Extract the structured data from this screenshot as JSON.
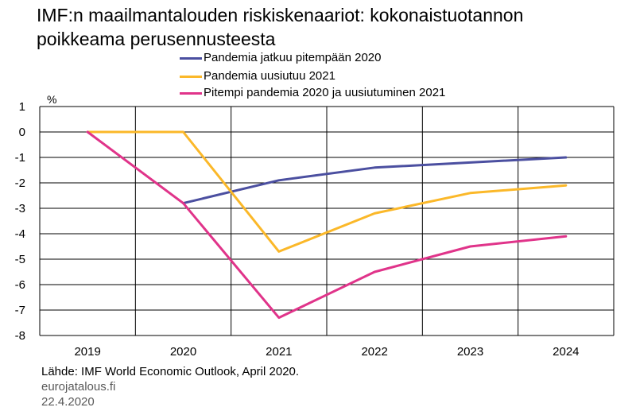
{
  "title_line1": "IMF:n maailmantalouden riskiskenaariot: kokonaistuotannon",
  "title_line2": "poikkeama perusennusteesta",
  "chart_data": {
    "type": "line",
    "unit": "%",
    "categories": [
      "2019",
      "2020",
      "2021",
      "2022",
      "2023",
      "2024"
    ],
    "ylim": [
      -8,
      1
    ],
    "yticks": [
      "1",
      "0",
      "-1",
      "-2",
      "-3",
      "-4",
      "-5",
      "-6",
      "-7",
      "-8"
    ],
    "grid": true,
    "legend_position": "top",
    "series": [
      {
        "name": "Pandemia jatkuu pitempään 2020",
        "color": "#4B4FA0",
        "values": [
          null,
          -2.8,
          -1.9,
          -1.4,
          -1.2,
          -1.0
        ]
      },
      {
        "name": "Pandemia uusiutuu 2021",
        "color": "#FBB829",
        "values": [
          0,
          0,
          -4.7,
          -3.2,
          -2.4,
          -2.1
        ]
      },
      {
        "name": "Pitempi pandemia 2020 ja uusiutuminen 2021",
        "color": "#E0348A",
        "values": [
          0,
          -2.8,
          -7.3,
          -5.5,
          -4.5,
          -4.1
        ]
      }
    ]
  },
  "footer": {
    "source": "Lähde: IMF World Economic Outlook, April 2020.",
    "site": "eurojatalous.fi",
    "date": "22.4.2020"
  }
}
